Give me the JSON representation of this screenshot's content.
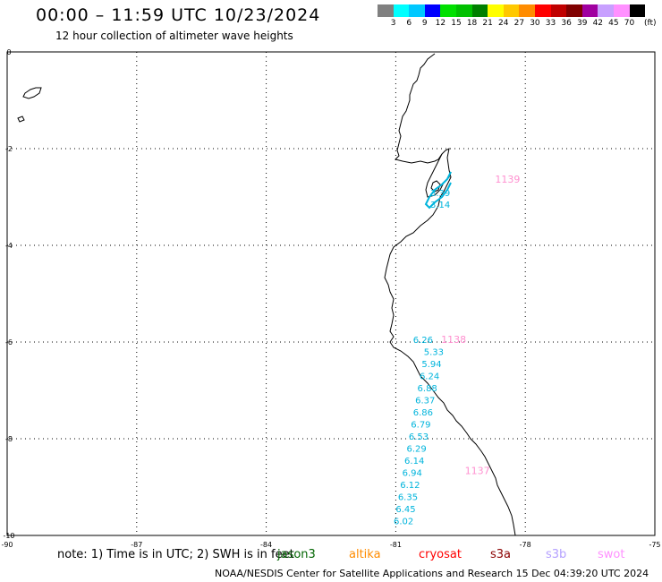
{
  "header": {
    "title": "00:00 – 11:59 UTC 10/23/2024",
    "subtitle": "12 hour collection of altimeter wave heights"
  },
  "legend": {
    "colors": [
      "#808080",
      "#00ffff",
      "#00c8ff",
      "#0000ff",
      "#00e000",
      "#00c000",
      "#008000",
      "#ffff00",
      "#ffc800",
      "#ff8c00",
      "#ff0000",
      "#c00000",
      "#800000",
      "#a000a0",
      "#c8a0ff",
      "#ff90ff",
      "#000000"
    ],
    "labels": [
      "3",
      "6",
      "9",
      "12",
      "15",
      "18",
      "21",
      "24",
      "27",
      "30",
      "33",
      "36",
      "39",
      "42",
      "45",
      "70"
    ],
    "unit": "(ft)"
  },
  "axes": {
    "x_ticks": [
      {
        "value": -90,
        "label": "-90"
      },
      {
        "value": -87,
        "label": "-87"
      },
      {
        "value": -84,
        "label": "-84"
      },
      {
        "value": -81,
        "label": "-81"
      },
      {
        "value": -78,
        "label": "-78"
      },
      {
        "value": -75,
        "label": "-75"
      }
    ],
    "y_ticks": [
      {
        "value": 0,
        "label": "0"
      },
      {
        "value": -2,
        "label": "-2"
      },
      {
        "value": -4,
        "label": "-4"
      },
      {
        "value": -6,
        "label": "-6"
      },
      {
        "value": -8,
        "label": "-8"
      },
      {
        "value": -10,
        "label": "-10"
      }
    ],
    "xlim": [
      -90,
      -75
    ],
    "ylim": [
      -10,
      0
    ],
    "grid": true
  },
  "wave_color": "#00b4dc",
  "pass_color": "#ff90d0",
  "wave_labels": [
    {
      "lon": -80.2,
      "lat": -2.98,
      "text": "3.39"
    },
    {
      "lon": -80.2,
      "lat": -3.22,
      "text": "3.14"
    },
    {
      "lon": -80.6,
      "lat": -6.02,
      "text": "6.26"
    },
    {
      "lon": -80.35,
      "lat": -6.27,
      "text": "5.33"
    },
    {
      "lon": -80.4,
      "lat": -6.52,
      "text": "5.94"
    },
    {
      "lon": -80.45,
      "lat": -6.77,
      "text": "6.24"
    },
    {
      "lon": -80.5,
      "lat": -7.02,
      "text": "6.88"
    },
    {
      "lon": -80.55,
      "lat": -7.27,
      "text": "6.37"
    },
    {
      "lon": -80.6,
      "lat": -7.52,
      "text": "6.86"
    },
    {
      "lon": -80.65,
      "lat": -7.77,
      "text": "6.79"
    },
    {
      "lon": -80.7,
      "lat": -8.02,
      "text": "6.53"
    },
    {
      "lon": -80.75,
      "lat": -8.27,
      "text": "6.29"
    },
    {
      "lon": -80.8,
      "lat": -8.52,
      "text": "6.14"
    },
    {
      "lon": -80.85,
      "lat": -8.77,
      "text": "6.94"
    },
    {
      "lon": -80.9,
      "lat": -9.02,
      "text": "6.12"
    },
    {
      "lon": -80.95,
      "lat": -9.27,
      "text": "6.35"
    },
    {
      "lon": -81.0,
      "lat": -9.52,
      "text": "6.45"
    },
    {
      "lon": -81.05,
      "lat": -9.77,
      "text": "6.02"
    }
  ],
  "pass_labels": [
    {
      "lon": -78.7,
      "lat": -2.7,
      "text": "1139"
    },
    {
      "lon": -79.95,
      "lat": -6.02,
      "text": "1138"
    },
    {
      "lon": -79.4,
      "lat": -8.73,
      "text": "1137"
    }
  ],
  "footer": {
    "note": "note:  1) Time is in UTC;  2) SWH is in feet",
    "satellites": [
      {
        "name": "jason3",
        "color": "#006400"
      },
      {
        "name": "altika",
        "color": "#ff8c00"
      },
      {
        "name": "cryosat",
        "color": "#ff0000"
      },
      {
        "name": "s3a",
        "color": "#8b0000"
      },
      {
        "name": "s3b",
        "color": "#b4a0ff"
      },
      {
        "name": "swot",
        "color": "#ff90ff"
      }
    ],
    "credit": "NOAA/NESDIS Center for Satellite Applications and Research    15 Dec 04:39:20 UTC 2024"
  }
}
